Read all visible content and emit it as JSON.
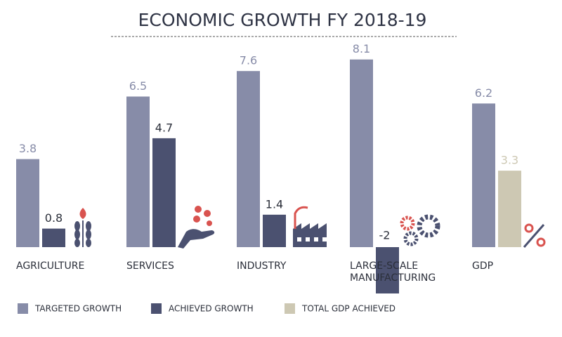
{
  "chart_data": {
    "type": "bar",
    "title": "ECONOMIC GROWTH FY 2018-19",
    "categories": [
      "AGRICULTURE",
      "SERVICES",
      "INDUSTRY",
      "LARGE-SCALE MANUFACTURING",
      "GDP"
    ],
    "series": [
      {
        "name": "TARGETED GROWTH",
        "color": "#878ca8",
        "label_color": "#878ca8",
        "values": [
          3.8,
          6.5,
          7.6,
          8.1,
          6.2
        ]
      },
      {
        "name": "ACHIEVED GROWTH",
        "color": "#4b5170",
        "label_color": "#2b2f3a",
        "values": [
          0.8,
          4.7,
          1.4,
          -2,
          null
        ]
      },
      {
        "name": "TOTAL GDP ACHIEVED",
        "color": "#cdc8b3",
        "label_color": "#cdc8b3",
        "values": [
          null,
          null,
          null,
          null,
          3.3
        ]
      }
    ]
  }
}
